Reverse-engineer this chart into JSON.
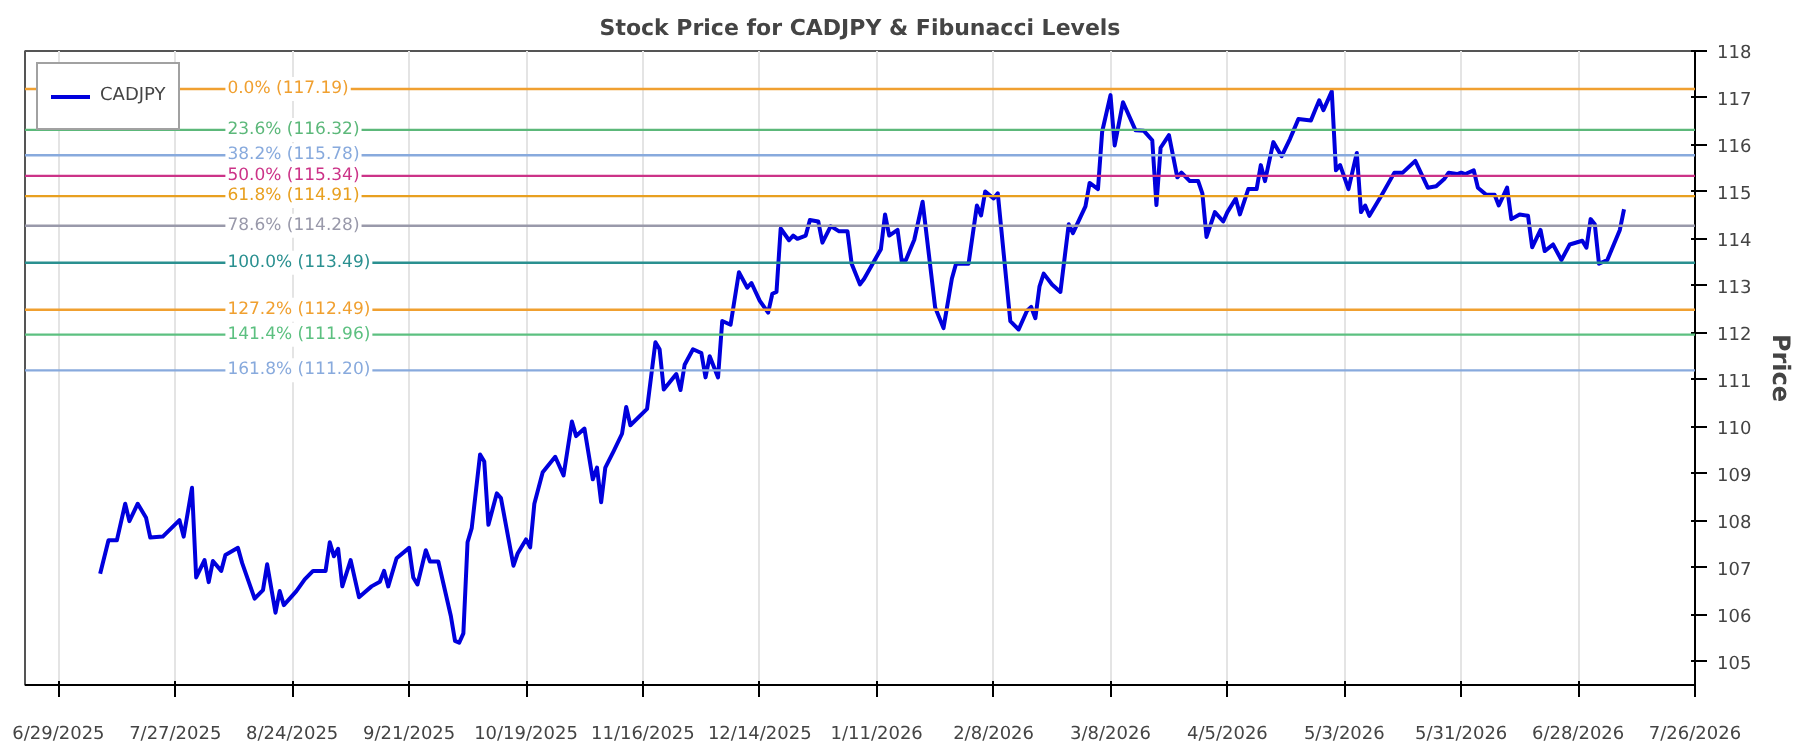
{
  "chart_data": {
    "type": "line",
    "title": "Stock Price for CADJPY & Fibunacci Levels",
    "ylabel": "Price",
    "xlim": [
      "2025-06-21",
      "2026-07-26"
    ],
    "ylim": [
      104.5,
      118
    ],
    "xticks": [
      {
        "value": "2025-06-29",
        "label": "6/29/2025"
      },
      {
        "value": "2025-07-27",
        "label": "7/27/2025"
      },
      {
        "value": "2025-08-24",
        "label": "8/24/2025"
      },
      {
        "value": "2025-09-21",
        "label": "9/21/2025"
      },
      {
        "value": "2025-10-19",
        "label": "10/19/2025"
      },
      {
        "value": "2025-11-16",
        "label": "11/16/2025"
      },
      {
        "value": "2025-12-14",
        "label": "12/14/2025"
      },
      {
        "value": "2026-01-11",
        "label": "1/11/2026"
      },
      {
        "value": "2026-02-08",
        "label": "2/8/2026"
      },
      {
        "value": "2026-03-08",
        "label": "3/8/2026"
      },
      {
        "value": "2026-04-05",
        "label": "4/5/2026"
      },
      {
        "value": "2026-05-03",
        "label": "5/3/2026"
      },
      {
        "value": "2026-05-31",
        "label": "5/31/2026"
      },
      {
        "value": "2026-06-28",
        "label": "6/28/2026"
      },
      {
        "value": "2026-07-26",
        "label": "7/26/2026"
      }
    ],
    "yticks": [
      105,
      106,
      107,
      108,
      109,
      110,
      111,
      112,
      113,
      114,
      115,
      116,
      117,
      118
    ],
    "grid": "x",
    "legend": "top left",
    "line_style": "solid",
    "series": [
      {
        "name": "CADJPY",
        "color": "#0000dd",
        "x": [
          "2025-07-09",
          "2025-07-11",
          "2025-07-13",
          "2025-07-15",
          "2025-07-16",
          "2025-07-18",
          "2025-07-20",
          "2025-07-21",
          "2025-07-24",
          "2025-07-28",
          "2025-07-29",
          "2025-07-31",
          "2025-08-01",
          "2025-08-03",
          "2025-08-04",
          "2025-08-05",
          "2025-08-07",
          "2025-08-08",
          "2025-08-11",
          "2025-08-12",
          "2025-08-15",
          "2025-08-17",
          "2025-08-18",
          "2025-08-20",
          "2025-08-21",
          "2025-08-22",
          "2025-08-25",
          "2025-08-27",
          "2025-08-29",
          "2025-09-01",
          "2025-09-02",
          "2025-09-03",
          "2025-09-04",
          "2025-09-05",
          "2025-09-07",
          "2025-09-09",
          "2025-09-12",
          "2025-09-14",
          "2025-09-15",
          "2025-09-16",
          "2025-09-18",
          "2025-09-21",
          "2025-09-22",
          "2025-09-23",
          "2025-09-25",
          "2025-09-26",
          "2025-09-28",
          "2025-10-01",
          "2025-10-02",
          "2025-10-03",
          "2025-10-04",
          "2025-10-05",
          "2025-10-06",
          "2025-10-08",
          "2025-10-09",
          "2025-10-10",
          "2025-10-12",
          "2025-10-13",
          "2025-10-16",
          "2025-10-17",
          "2025-10-19",
          "2025-10-20",
          "2025-10-21",
          "2025-10-23",
          "2025-10-26",
          "2025-10-28",
          "2025-10-30",
          "2025-10-31",
          "2025-11-02",
          "2025-11-04",
          "2025-11-05",
          "2025-11-06",
          "2025-11-07",
          "2025-11-09",
          "2025-11-11",
          "2025-11-12",
          "2025-11-13",
          "2025-11-17",
          "2025-11-19",
          "2025-11-20",
          "2025-11-21",
          "2025-11-24",
          "2025-11-25",
          "2025-11-26",
          "2025-11-28",
          "2025-11-30",
          "2025-12-01",
          "2025-12-02",
          "2025-12-04",
          "2025-12-05",
          "2025-12-07",
          "2025-12-09",
          "2025-12-11",
          "2025-12-12",
          "2025-12-14",
          "2025-12-16",
          "2025-12-17",
          "2025-12-18",
          "2025-12-19",
          "2025-12-21",
          "2025-12-22",
          "2025-12-23",
          "2025-12-25",
          "2025-12-26",
          "2025-12-28",
          "2025-12-29",
          "2025-12-31",
          "2026-01-02",
          "2026-01-04",
          "2026-01-05",
          "2026-01-07",
          "2026-01-08",
          "2026-01-12",
          "2026-01-13",
          "2026-01-14",
          "2026-01-16",
          "2026-01-17",
          "2026-01-18",
          "2026-01-20",
          "2026-01-22",
          "2026-01-25",
          "2026-01-27",
          "2026-01-29",
          "2026-01-30",
          "2026-02-02",
          "2026-02-04",
          "2026-02-05",
          "2026-02-06",
          "2026-02-08",
          "2026-02-09",
          "2026-02-12",
          "2026-02-14",
          "2026-02-16",
          "2026-02-17",
          "2026-02-18",
          "2026-02-19",
          "2026-02-20",
          "2026-02-22",
          "2026-02-24",
          "2026-02-26",
          "2026-02-27",
          "2026-03-02",
          "2026-03-03",
          "2026-03-05",
          "2026-03-06",
          "2026-03-08",
          "2026-03-09",
          "2026-03-11",
          "2026-03-14",
          "2026-03-16",
          "2026-03-18",
          "2026-03-19",
          "2026-03-20",
          "2026-03-22",
          "2026-03-24",
          "2026-03-25",
          "2026-03-27",
          "2026-03-29",
          "2026-03-30",
          "2026-03-31",
          "2026-04-02",
          "2026-04-04",
          "2026-04-05",
          "2026-04-07",
          "2026-04-08",
          "2026-04-10",
          "2026-04-12",
          "2026-04-13",
          "2026-04-14",
          "2026-04-16",
          "2026-04-18",
          "2026-04-20",
          "2026-04-22",
          "2026-04-25",
          "2026-04-26",
          "2026-04-27",
          "2026-04-28",
          "2026-04-30",
          "2026-05-01",
          "2026-05-02",
          "2026-05-04",
          "2026-05-06",
          "2026-05-07",
          "2026-05-08",
          "2026-05-09",
          "2026-05-12",
          "2026-05-15",
          "2026-05-17",
          "2026-05-20",
          "2026-05-23",
          "2026-05-25",
          "2026-05-27",
          "2026-05-28",
          "2026-05-30",
          "2026-05-31",
          "2026-06-01",
          "2026-06-03",
          "2026-06-04",
          "2026-06-06",
          "2026-06-08",
          "2026-06-09",
          "2026-06-11",
          "2026-06-12",
          "2026-06-14",
          "2026-06-16",
          "2026-06-17",
          "2026-06-19",
          "2026-06-20",
          "2026-06-22",
          "2026-06-24",
          "2026-06-26",
          "2026-06-29",
          "2026-06-30",
          "2026-07-01",
          "2026-07-02",
          "2026-07-03",
          "2026-07-05",
          "2026-07-08",
          "2026-07-09"
        ],
        "values": [
          106.87,
          107.58,
          107.58,
          108.36,
          107.99,
          108.36,
          108.06,
          107.64,
          107.66,
          108.01,
          107.66,
          108.7,
          106.79,
          107.16,
          106.69,
          107.14,
          106.93,
          107.27,
          107.42,
          107.1,
          106.34,
          106.52,
          107.07,
          106.04,
          106.5,
          106.2,
          106.5,
          106.75,
          106.93,
          106.93,
          107.54,
          107.24,
          107.4,
          106.6,
          107.16,
          106.37,
          106.6,
          106.7,
          106.93,
          106.6,
          107.2,
          107.42,
          106.79,
          106.64,
          107.37,
          107.13,
          107.13,
          105.97,
          105.44,
          105.4,
          105.6,
          107.54,
          107.84,
          109.41,
          109.26,
          107.91,
          108.58,
          108.48,
          107.04,
          107.3,
          107.6,
          107.43,
          108.36,
          109.03,
          109.36,
          108.96,
          110.11,
          109.8,
          109.96,
          108.88,
          109.13,
          108.39,
          109.13,
          109.48,
          109.85,
          110.42,
          110.03,
          110.38,
          111.8,
          111.65,
          110.79,
          111.12,
          110.78,
          111.32,
          111.65,
          111.57,
          111.05,
          111.5,
          111.05,
          112.25,
          112.17,
          113.29,
          112.96,
          113.06,
          112.68,
          112.43,
          112.83,
          112.87,
          114.22,
          113.97,
          114.07,
          114.0,
          114.07,
          114.4,
          114.37,
          113.92,
          114.27,
          114.16,
          114.16,
          113.47,
          113.03,
          113.15,
          113.78,
          114.52,
          114.07,
          114.19,
          113.52,
          113.55,
          113.98,
          114.79,
          112.54,
          112.1,
          113.15,
          113.47,
          113.47,
          114.71,
          114.5,
          115.01,
          114.86,
          114.97,
          112.25,
          112.07,
          112.47,
          112.55,
          112.31,
          112.99,
          113.26,
          113.03,
          112.87,
          114.31,
          114.12,
          114.69,
          115.19,
          115.06,
          116.28,
          117.06,
          115.99,
          116.91,
          116.31,
          116.3,
          116.1,
          114.72,
          115.94,
          116.21,
          115.31,
          115.41,
          115.23,
          115.23,
          114.97,
          114.04,
          114.57,
          114.37,
          114.57,
          114.86,
          114.52,
          115.06,
          115.06,
          115.57,
          115.23,
          116.06,
          115.76,
          116.13,
          116.55,
          116.52,
          116.74,
          116.95,
          116.74,
          117.14,
          115.46,
          115.57,
          115.06,
          115.83,
          114.57,
          114.71,
          114.49,
          114.94,
          115.41,
          115.41,
          115.66,
          115.09,
          115.12,
          115.28,
          115.41,
          115.38,
          115.41,
          115.38,
          115.46,
          115.09,
          114.94,
          114.94,
          114.71,
          115.09,
          114.42,
          114.52,
          114.49,
          113.82,
          114.19,
          113.74,
          113.88,
          113.55,
          113.88,
          113.96,
          113.81,
          114.42,
          114.31,
          113.47,
          113.55,
          114.19,
          114.63
        ]
      }
    ],
    "ref_lines": [
      {
        "axis": "y",
        "value": 117.19,
        "label": "0.0% (117.19)",
        "color": "#f0a030"
      },
      {
        "axis": "y",
        "value": 116.32,
        "label": "23.6% (116.32)",
        "color": "#5cb87a"
      },
      {
        "axis": "y",
        "value": 115.78,
        "label": "38.2% (115.78)",
        "color": "#88aadd"
      },
      {
        "axis": "y",
        "value": 115.34,
        "label": "50.0% (115.34)",
        "color": "#cc3388"
      },
      {
        "axis": "y",
        "value": 114.91,
        "label": "61.8% (114.91)",
        "color": "#e8a020"
      },
      {
        "axis": "y",
        "value": 114.28,
        "label": "78.6% (114.28)",
        "color": "#9999aa"
      },
      {
        "axis": "y",
        "value": 113.49,
        "label": "100.0% (113.49)",
        "color": "#2a9090"
      },
      {
        "axis": "y",
        "value": 112.49,
        "label": "127.2% (112.49)",
        "color": "#f0a030"
      },
      {
        "axis": "y",
        "value": 111.96,
        "label": "141.4% (111.96)",
        "color": "#5cc080"
      },
      {
        "axis": "y",
        "value": 111.2,
        "label": "161.8% (111.20)",
        "color": "#88aadd"
      }
    ]
  }
}
